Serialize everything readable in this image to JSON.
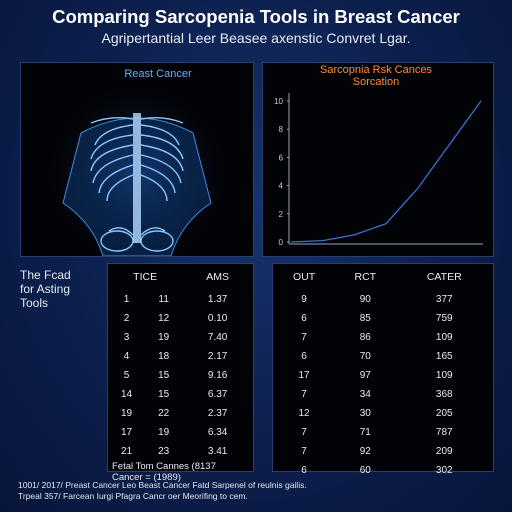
{
  "header": {
    "title": "Comparing Sarcopenia Tools in Breast Cancer",
    "subtitle": "Agripertantial Leer Beasee axenstic Convret Lgar."
  },
  "scan_panel": {
    "label": "Reast Cancer"
  },
  "risk_chart": {
    "type": "line",
    "title": [
      "Sarcopnia Rsk Cances",
      "Sorcation"
    ],
    "ylim": [
      0,
      10
    ],
    "yticks": [
      0,
      2,
      4,
      6,
      8,
      10
    ],
    "values": [
      0,
      0.1,
      0.5,
      1.3,
      3.8,
      6.9,
      10
    ],
    "color": "#3f6fd6"
  },
  "side_label": [
    "The Fcad",
    "for Asting",
    "Tools"
  ],
  "left_table": {
    "headers": [
      "TICE",
      "AMS"
    ],
    "rows": [
      [
        "1",
        "11",
        "1.37"
      ],
      [
        "2",
        "12",
        "0.10"
      ],
      [
        "3",
        "19",
        "7.40"
      ],
      [
        "4",
        "18",
        "2.17"
      ],
      [
        "5",
        "15",
        "9.16"
      ],
      [
        "14",
        "15",
        "6.37"
      ],
      [
        "19",
        "22",
        "2.37"
      ],
      [
        "17",
        "19",
        "6.34"
      ],
      [
        "21",
        "23",
        "3.41"
      ]
    ],
    "footer": [
      "Fetal Tom Cannes (8137",
      "Cancer = (1989)"
    ]
  },
  "right_table": {
    "headers": [
      "OUT",
      "RCT",
      "CATER"
    ],
    "rows": [
      [
        "9",
        "90",
        "377"
      ],
      [
        "6",
        "85",
        "759"
      ],
      [
        "7",
        "86",
        "109"
      ],
      [
        "6",
        "70",
        "165"
      ],
      [
        "17",
        "97",
        "109"
      ],
      [
        "7",
        "34",
        "368"
      ],
      [
        "12",
        "30",
        "205"
      ],
      [
        "7",
        "71",
        "787"
      ],
      [
        "7",
        "92",
        "209"
      ],
      [
        "6",
        "60",
        "302"
      ]
    ]
  },
  "footer": [
    "1001/ 2017/ Preast Cancer Leo Beast Cancer Fatd Sarpenel of reulnis gailis.",
    "Trpeal 357/ Farcean Iurgi Pfagra Cancr oer Meorifing to cem."
  ]
}
